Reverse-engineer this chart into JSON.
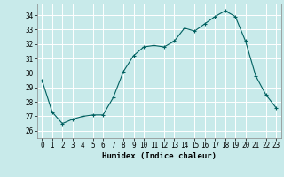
{
  "x": [
    0,
    1,
    2,
    3,
    4,
    5,
    6,
    7,
    8,
    9,
    10,
    11,
    12,
    13,
    14,
    15,
    16,
    17,
    18,
    19,
    20,
    21,
    22,
    23
  ],
  "y": [
    29.5,
    27.3,
    26.5,
    26.8,
    27.0,
    27.1,
    27.1,
    28.3,
    30.1,
    31.2,
    31.8,
    31.9,
    31.8,
    32.2,
    33.1,
    32.9,
    33.4,
    33.9,
    34.3,
    33.9,
    32.2,
    29.8,
    28.5,
    27.6
  ],
  "line_color": "#006060",
  "marker": "+",
  "marker_size": 3,
  "bg_color": "#c8eaea",
  "grid_color": "#ffffff",
  "xlabel": "Humidex (Indice chaleur)",
  "xlim": [
    -0.5,
    23.5
  ],
  "ylim": [
    25.5,
    34.8
  ],
  "yticks": [
    26,
    27,
    28,
    29,
    30,
    31,
    32,
    33,
    34
  ],
  "xticks": [
    0,
    1,
    2,
    3,
    4,
    5,
    6,
    7,
    8,
    9,
    10,
    11,
    12,
    13,
    14,
    15,
    16,
    17,
    18,
    19,
    20,
    21,
    22,
    23
  ],
  "label_fontsize": 6.5,
  "tick_fontsize": 5.5
}
